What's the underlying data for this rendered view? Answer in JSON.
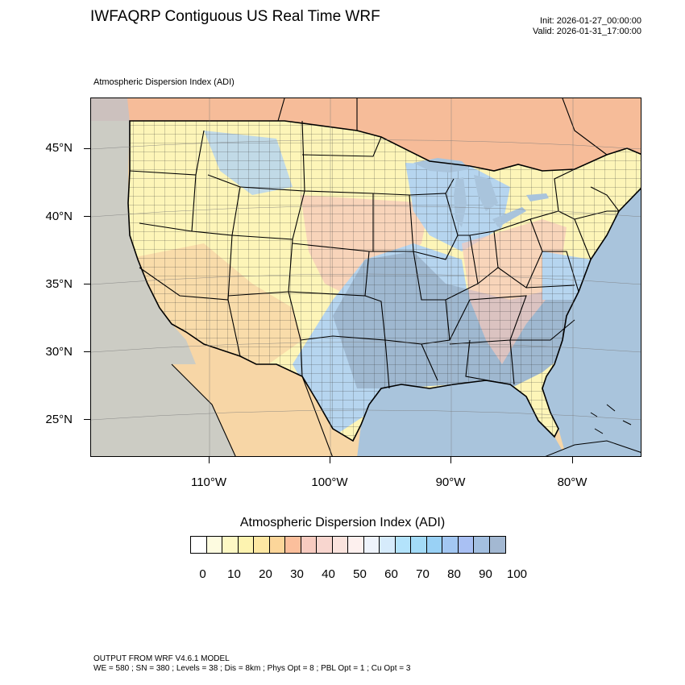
{
  "header": {
    "title": "IWFAQRP Contiguous US Real Time WRF",
    "init": "Init: 2026-01-27_00:00:00",
    "valid": "Valid: 2026-01-31_17:00:00"
  },
  "map": {
    "label": "Atmospheric Dispersion Index   (ADI)",
    "lat_labels": [
      "45°N",
      "40°N",
      "35°N",
      "30°N",
      "25°N"
    ],
    "lon_labels": [
      "110°W",
      "100°W",
      "90°W",
      "80°W"
    ],
    "colors": {
      "ocean": "#a9c4dc",
      "land_warm": "#f7d6a6",
      "land_yellow": "#fdf5b8",
      "land_pink": "#f5c8bb",
      "land_blue": "#b6d5ef",
      "land_gray_blue": "#9fb8d0",
      "canada_red": "#f6a88e"
    }
  },
  "colorbar": {
    "title": "Atmospheric Dispersion Index  (ADI)",
    "labels": [
      "0",
      "10",
      "20",
      "30",
      "40",
      "50",
      "60",
      "70",
      "80",
      "90",
      "100"
    ],
    "colors": [
      "#ffffff",
      "#fdfbe0",
      "#fdf8c4",
      "#fdf3b0",
      "#fde7a3",
      "#fcd69a",
      "#fbbf9c",
      "#f7cbc0",
      "#f8d6cf",
      "#fae3dd",
      "#fdf0ee",
      "#eef3fb",
      "#d6ebfb",
      "#b3e3fb",
      "#a3dbf7",
      "#99d1f5",
      "#a3c7f2",
      "#a9c0f3",
      "#a3bfe0",
      "#a3b8d2"
    ]
  },
  "footer": {
    "line1": "OUTPUT FROM WRF V4.6.1 MODEL",
    "line2": "WE = 580 ; SN = 380 ; Levels = 38 ; Dis = 8km ; Phys Opt = 8 ; PBL Opt = 1 ; Cu Opt = 3"
  }
}
